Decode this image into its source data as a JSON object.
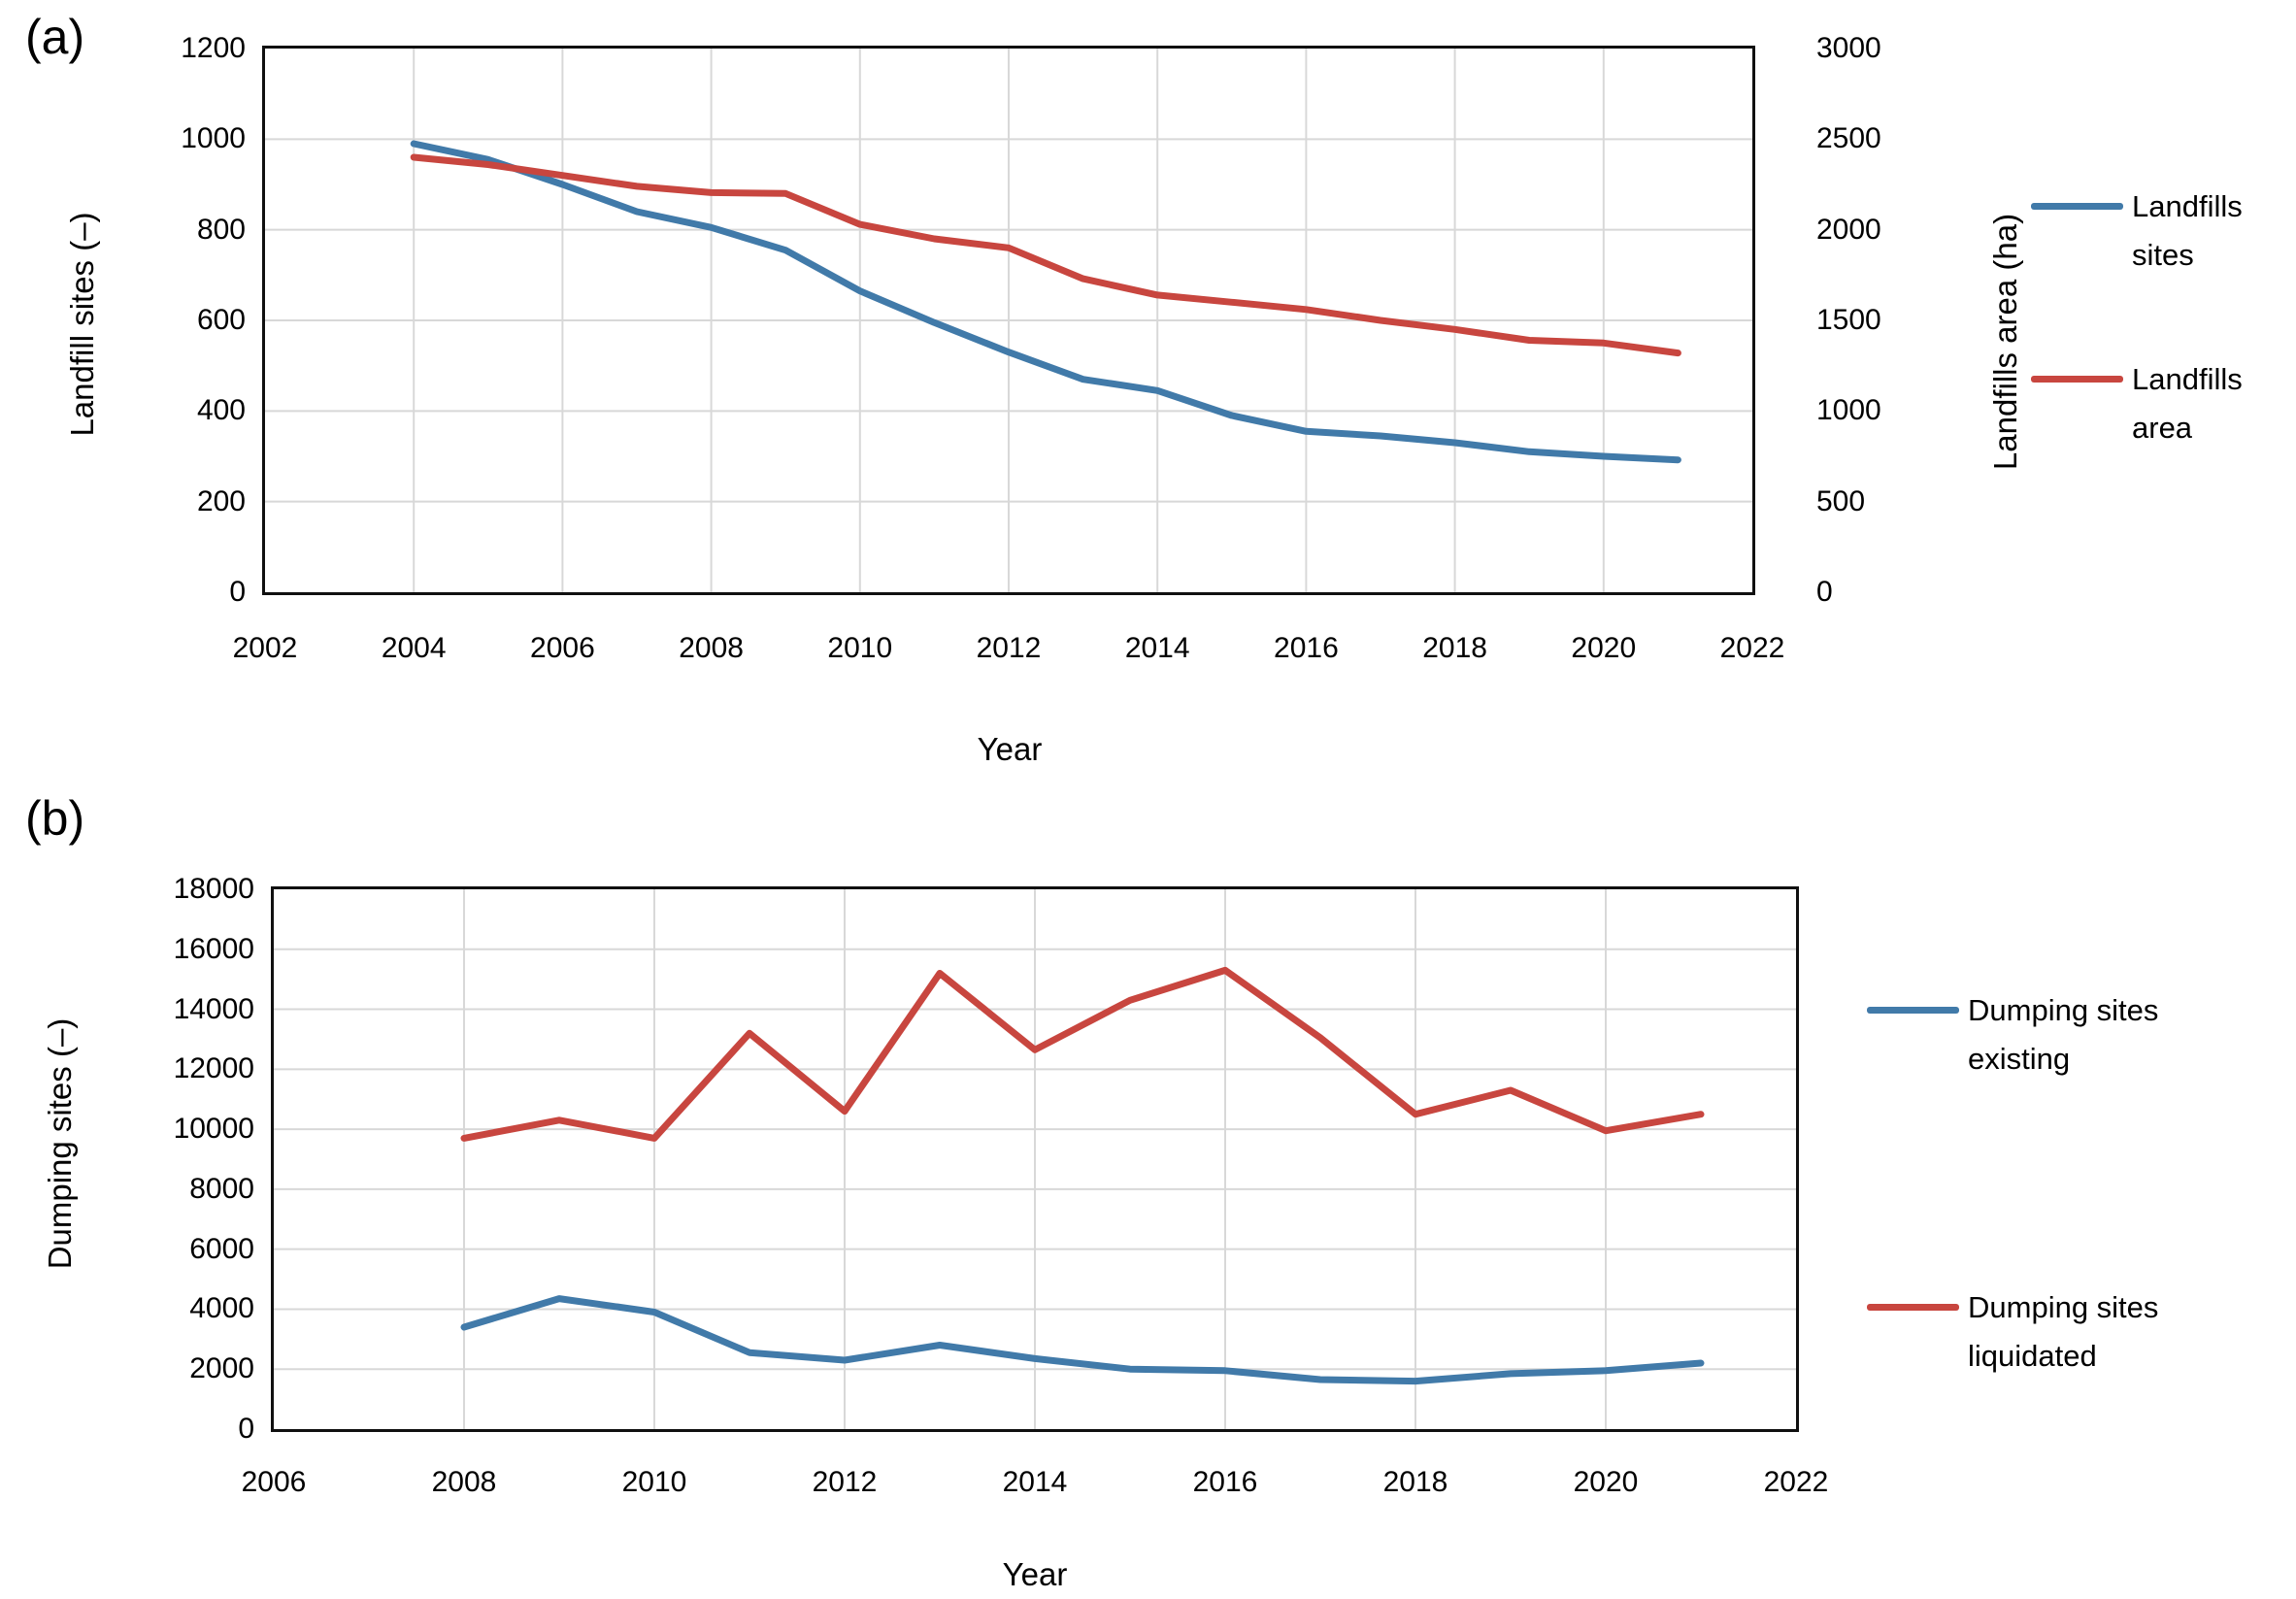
{
  "figure": {
    "background": "#FFFFFF"
  },
  "panels": [
    {
      "label": "(a)"
    },
    {
      "label": "(b)"
    }
  ],
  "colors": {
    "gridline": "#D8D8D8",
    "axis_border": "#101010",
    "text": "#000000",
    "series_blue": "#417AA9",
    "series_red": "#C8463F"
  },
  "chart_data": [
    {
      "type": "line",
      "panel_label": "(a)",
      "xlabel": "Year",
      "ylabel_left": "Landfill sites (–)",
      "ylabel_right": "Landfills area (ha)",
      "grid": true,
      "legend_position": "right",
      "x_axis": {
        "min": 2002,
        "max": 2022
      },
      "x_tick_labels": [
        "2002",
        "2004",
        "2006",
        "2008",
        "2010",
        "2012",
        "2014",
        "2016",
        "2018",
        "2020",
        "2022"
      ],
      "y_left": {
        "min": 0,
        "max": 1200
      },
      "y_left_tick_labels": [
        "1200",
        "1000",
        "800",
        "600",
        "400",
        "200",
        "0"
      ],
      "y_right": {
        "min": 0,
        "max": 3000
      },
      "y_right_tick_labels": [
        "3000",
        "2500",
        "2000",
        "1500",
        "1000",
        "500",
        "0"
      ],
      "x": [
        2004,
        2005,
        2006,
        2007,
        2008,
        2009,
        2010,
        2011,
        2012,
        2013,
        2014,
        2015,
        2016,
        2017,
        2018,
        2019,
        2020,
        2021
      ],
      "series": [
        {
          "name": "Landfills sites",
          "slug": "landfills-sites",
          "axis": "left",
          "color": "#417AA9",
          "values": [
            990,
            955,
            900,
            840,
            805,
            755,
            665,
            595,
            530,
            470,
            445,
            390,
            355,
            345,
            330,
            310,
            300,
            292
          ]
        },
        {
          "name": "Landfills area",
          "slug": "landfills-area",
          "axis": "right",
          "color": "#C8463F",
          "values": [
            2400,
            2360,
            2300,
            2240,
            2205,
            2200,
            2030,
            1950,
            1900,
            1730,
            1640,
            1600,
            1560,
            1500,
            1450,
            1390,
            1375,
            1320
          ]
        }
      ],
      "legend": [
        {
          "series_index": 0,
          "lines": [
            "Landfills",
            "sites"
          ]
        },
        {
          "series_index": 1,
          "lines": [
            "Landfills",
            "area"
          ]
        }
      ]
    },
    {
      "type": "line",
      "panel_label": "(b)",
      "xlabel": "Year",
      "ylabel_left": "Dumping sites (–)",
      "grid": true,
      "legend_position": "right",
      "x_axis": {
        "min": 2006,
        "max": 2022
      },
      "x_tick_labels": [
        "2006",
        "2008",
        "2010",
        "2012",
        "2014",
        "2016",
        "2018",
        "2020",
        "2022"
      ],
      "y_left": {
        "min": 0,
        "max": 18000
      },
      "y_left_tick_labels": [
        "18000",
        "16000",
        "14000",
        "12000",
        "10000",
        "8000",
        "6000",
        "4000",
        "2000",
        "0"
      ],
      "x": [
        2008,
        2009,
        2010,
        2011,
        2012,
        2013,
        2014,
        2015,
        2016,
        2017,
        2018,
        2019,
        2020,
        2021
      ],
      "series": [
        {
          "name": "Dumping sites existing",
          "slug": "dumping-sites-existing",
          "axis": "left",
          "color": "#417AA9",
          "values": [
            3400,
            4350,
            3900,
            2550,
            2300,
            2800,
            2350,
            2000,
            1950,
            1650,
            1600,
            1850,
            1950,
            2200
          ]
        },
        {
          "name": "Dumping sites liquidated",
          "slug": "dumping-sites-liquidated",
          "axis": "left",
          "color": "#C8463F",
          "values": [
            9700,
            10300,
            9700,
            13200,
            10600,
            15200,
            12650,
            14300,
            15300,
            13050,
            10500,
            11300,
            9950,
            10500
          ]
        }
      ],
      "legend": [
        {
          "series_index": 0,
          "lines": [
            "Dumping sites",
            "existing"
          ]
        },
        {
          "series_index": 1,
          "lines": [
            "Dumping sites",
            "liquidated"
          ]
        }
      ]
    }
  ]
}
